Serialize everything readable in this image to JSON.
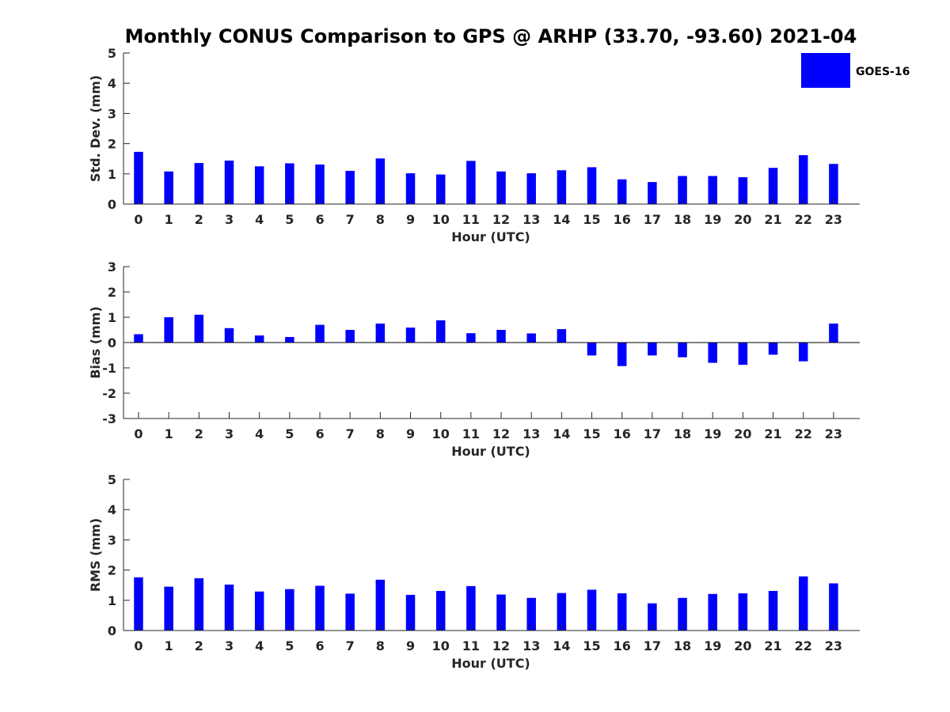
{
  "chart_data": [
    {
      "type": "bar",
      "title": "Monthly CONUS Comparison to GPS @ ARHP (33.70, -93.60) 2021-04",
      "xlabel": "Hour (UTC)",
      "ylabel": "Std. Dev. (mm)",
      "ylim": [
        0,
        5
      ],
      "yticks": [
        0,
        1,
        2,
        3,
        4,
        5
      ],
      "categories": [
        0,
        1,
        2,
        3,
        4,
        5,
        6,
        7,
        8,
        9,
        10,
        11,
        12,
        13,
        14,
        15,
        16,
        17,
        18,
        19,
        20,
        21,
        22,
        23
      ],
      "series": [
        {
          "name": "GOES-16",
          "color": "#0000ff",
          "values": [
            1.73,
            1.08,
            1.36,
            1.44,
            1.25,
            1.35,
            1.31,
            1.1,
            1.51,
            1.02,
            0.98,
            1.43,
            1.08,
            1.02,
            1.12,
            1.22,
            0.82,
            0.73,
            0.93,
            0.93,
            0.89,
            1.2,
            1.62,
            1.33
          ]
        }
      ],
      "legend": {
        "position": "top-right",
        "entries": [
          "GOES-16"
        ]
      },
      "grid": false
    },
    {
      "type": "bar",
      "xlabel": "Hour (UTC)",
      "ylabel": "Bias (mm)",
      "ylim": [
        -3,
        3
      ],
      "yticks": [
        -3,
        -2,
        -1,
        0,
        1,
        2,
        3
      ],
      "zero_line": true,
      "categories": [
        0,
        1,
        2,
        3,
        4,
        5,
        6,
        7,
        8,
        9,
        10,
        11,
        12,
        13,
        14,
        15,
        16,
        17,
        18,
        19,
        20,
        21,
        22,
        23
      ],
      "series": [
        {
          "name": "GOES-16",
          "color": "#0000ff",
          "values": [
            0.33,
            1.0,
            1.1,
            0.57,
            0.28,
            0.22,
            0.7,
            0.5,
            0.75,
            0.59,
            0.88,
            0.37,
            0.5,
            0.36,
            0.53,
            -0.51,
            -0.93,
            -0.51,
            -0.58,
            -0.8,
            -0.88,
            -0.48,
            -0.74,
            0.75
          ]
        }
      ],
      "grid": false
    },
    {
      "type": "bar",
      "xlabel": "Hour (UTC)",
      "ylabel": "RMS (mm)",
      "ylim": [
        0,
        5
      ],
      "yticks": [
        0,
        1,
        2,
        3,
        4,
        5
      ],
      "categories": [
        0,
        1,
        2,
        3,
        4,
        5,
        6,
        7,
        8,
        9,
        10,
        11,
        12,
        13,
        14,
        15,
        16,
        17,
        18,
        19,
        20,
        21,
        22,
        23
      ],
      "series": [
        {
          "name": "GOES-16",
          "color": "#0000ff",
          "values": [
            1.76,
            1.45,
            1.73,
            1.52,
            1.29,
            1.37,
            1.48,
            1.22,
            1.68,
            1.18,
            1.31,
            1.47,
            1.19,
            1.08,
            1.24,
            1.35,
            1.23,
            0.9,
            1.08,
            1.21,
            1.23,
            1.31,
            1.79,
            1.56
          ]
        }
      ],
      "grid": false
    }
  ]
}
